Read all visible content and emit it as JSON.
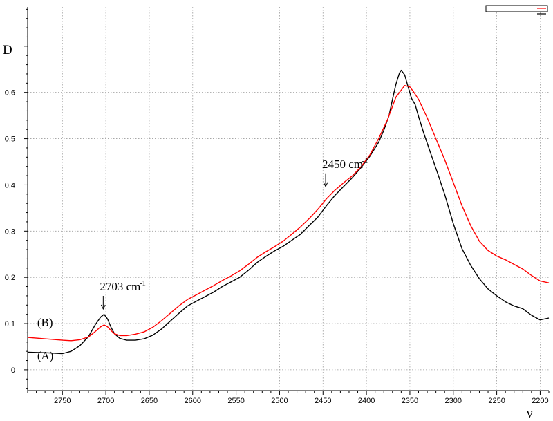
{
  "chart_data": {
    "type": "line",
    "title": "",
    "xlabel": "ν",
    "ylabel": "D",
    "x_reversed": true,
    "xlim": [
      2790,
      2190
    ],
    "ylim": [
      -0.045,
      0.785
    ],
    "grid": true,
    "x_ticks": [
      2750,
      2700,
      2650,
      2600,
      2550,
      2500,
      2450,
      2400,
      2350,
      2300,
      2250,
      2200
    ],
    "x_tick_labels": [
      "2750",
      "2700",
      "2650",
      "2600",
      "2550",
      "2500",
      "2450",
      "2400",
      "2350",
      "2300",
      "2250",
      "2200"
    ],
    "y_ticks": [
      0,
      0.1,
      0.2,
      0.3,
      0.4,
      0.5,
      0.6
    ],
    "y_tick_labels": [
      "0",
      "0,1",
      "0,2",
      "0,3",
      "0,4",
      "0,5",
      "0,6"
    ],
    "series": [
      {
        "name": "(A)",
        "color": "#000000",
        "x": [
          2790,
          2770,
          2750,
          2740,
          2730,
          2720,
          2712,
          2706,
          2702,
          2698,
          2694,
          2690,
          2684,
          2676,
          2666,
          2656,
          2646,
          2636,
          2626,
          2616,
          2606,
          2596,
          2586,
          2576,
          2566,
          2556,
          2546,
          2536,
          2526,
          2516,
          2506,
          2496,
          2486,
          2476,
          2466,
          2456,
          2446,
          2436,
          2426,
          2416,
          2406,
          2396,
          2386,
          2380,
          2374,
          2370,
          2366,
          2362,
          2360,
          2356,
          2352,
          2348,
          2344,
          2340,
          2334,
          2326,
          2318,
          2310,
          2300,
          2290,
          2280,
          2270,
          2260,
          2250,
          2240,
          2230,
          2220,
          2210,
          2200,
          2190
        ],
        "y": [
          0.038,
          0.037,
          0.035,
          0.04,
          0.052,
          0.072,
          0.098,
          0.114,
          0.12,
          0.11,
          0.092,
          0.078,
          0.068,
          0.064,
          0.064,
          0.067,
          0.075,
          0.088,
          0.105,
          0.122,
          0.138,
          0.148,
          0.158,
          0.168,
          0.18,
          0.19,
          0.2,
          0.215,
          0.232,
          0.245,
          0.257,
          0.267,
          0.28,
          0.293,
          0.312,
          0.33,
          0.355,
          0.378,
          0.397,
          0.416,
          0.438,
          0.462,
          0.492,
          0.518,
          0.55,
          0.585,
          0.618,
          0.642,
          0.648,
          0.638,
          0.612,
          0.587,
          0.574,
          0.548,
          0.512,
          0.468,
          0.425,
          0.38,
          0.316,
          0.262,
          0.226,
          0.197,
          0.175,
          0.16,
          0.147,
          0.138,
          0.132,
          0.118,
          0.108,
          0.112
        ]
      },
      {
        "name": "(B)",
        "color": "#ff0000",
        "x": [
          2790,
          2770,
          2750,
          2740,
          2730,
          2720,
          2712,
          2706,
          2702,
          2698,
          2694,
          2690,
          2684,
          2676,
          2666,
          2656,
          2646,
          2636,
          2626,
          2616,
          2606,
          2596,
          2586,
          2576,
          2566,
          2556,
          2546,
          2536,
          2526,
          2516,
          2506,
          2496,
          2486,
          2476,
          2466,
          2456,
          2446,
          2436,
          2426,
          2416,
          2406,
          2396,
          2386,
          2376,
          2366,
          2356,
          2350,
          2346,
          2340,
          2330,
          2320,
          2310,
          2300,
          2290,
          2280,
          2270,
          2260,
          2250,
          2240,
          2230,
          2220,
          2210,
          2200,
          2190
        ],
        "y": [
          0.07,
          0.067,
          0.064,
          0.063,
          0.065,
          0.071,
          0.083,
          0.093,
          0.097,
          0.093,
          0.085,
          0.078,
          0.074,
          0.074,
          0.077,
          0.082,
          0.092,
          0.106,
          0.122,
          0.138,
          0.152,
          0.162,
          0.172,
          0.182,
          0.193,
          0.203,
          0.214,
          0.228,
          0.243,
          0.255,
          0.266,
          0.278,
          0.293,
          0.309,
          0.327,
          0.347,
          0.37,
          0.389,
          0.405,
          0.42,
          0.44,
          0.465,
          0.5,
          0.54,
          0.59,
          0.615,
          0.612,
          0.602,
          0.585,
          0.545,
          0.5,
          0.455,
          0.405,
          0.355,
          0.312,
          0.278,
          0.258,
          0.246,
          0.238,
          0.228,
          0.218,
          0.204,
          0.192,
          0.188
        ]
      }
    ],
    "annotations": [
      {
        "id": "peak-2703",
        "text": "2703 cm",
        "sup": "-1",
        "x": 2703,
        "y": 0.13
      },
      {
        "id": "shoulder-2450",
        "text": "2450 cm",
        "sup": "-1",
        "x": 2447,
        "y": 0.395
      }
    ],
    "curve_labels": [
      {
        "id": "label-b",
        "text": "(B)",
        "x": 2779,
        "y": 0.094
      },
      {
        "id": "label-a",
        "text": "(A)",
        "x": 2779,
        "y": 0.022
      }
    ]
  }
}
